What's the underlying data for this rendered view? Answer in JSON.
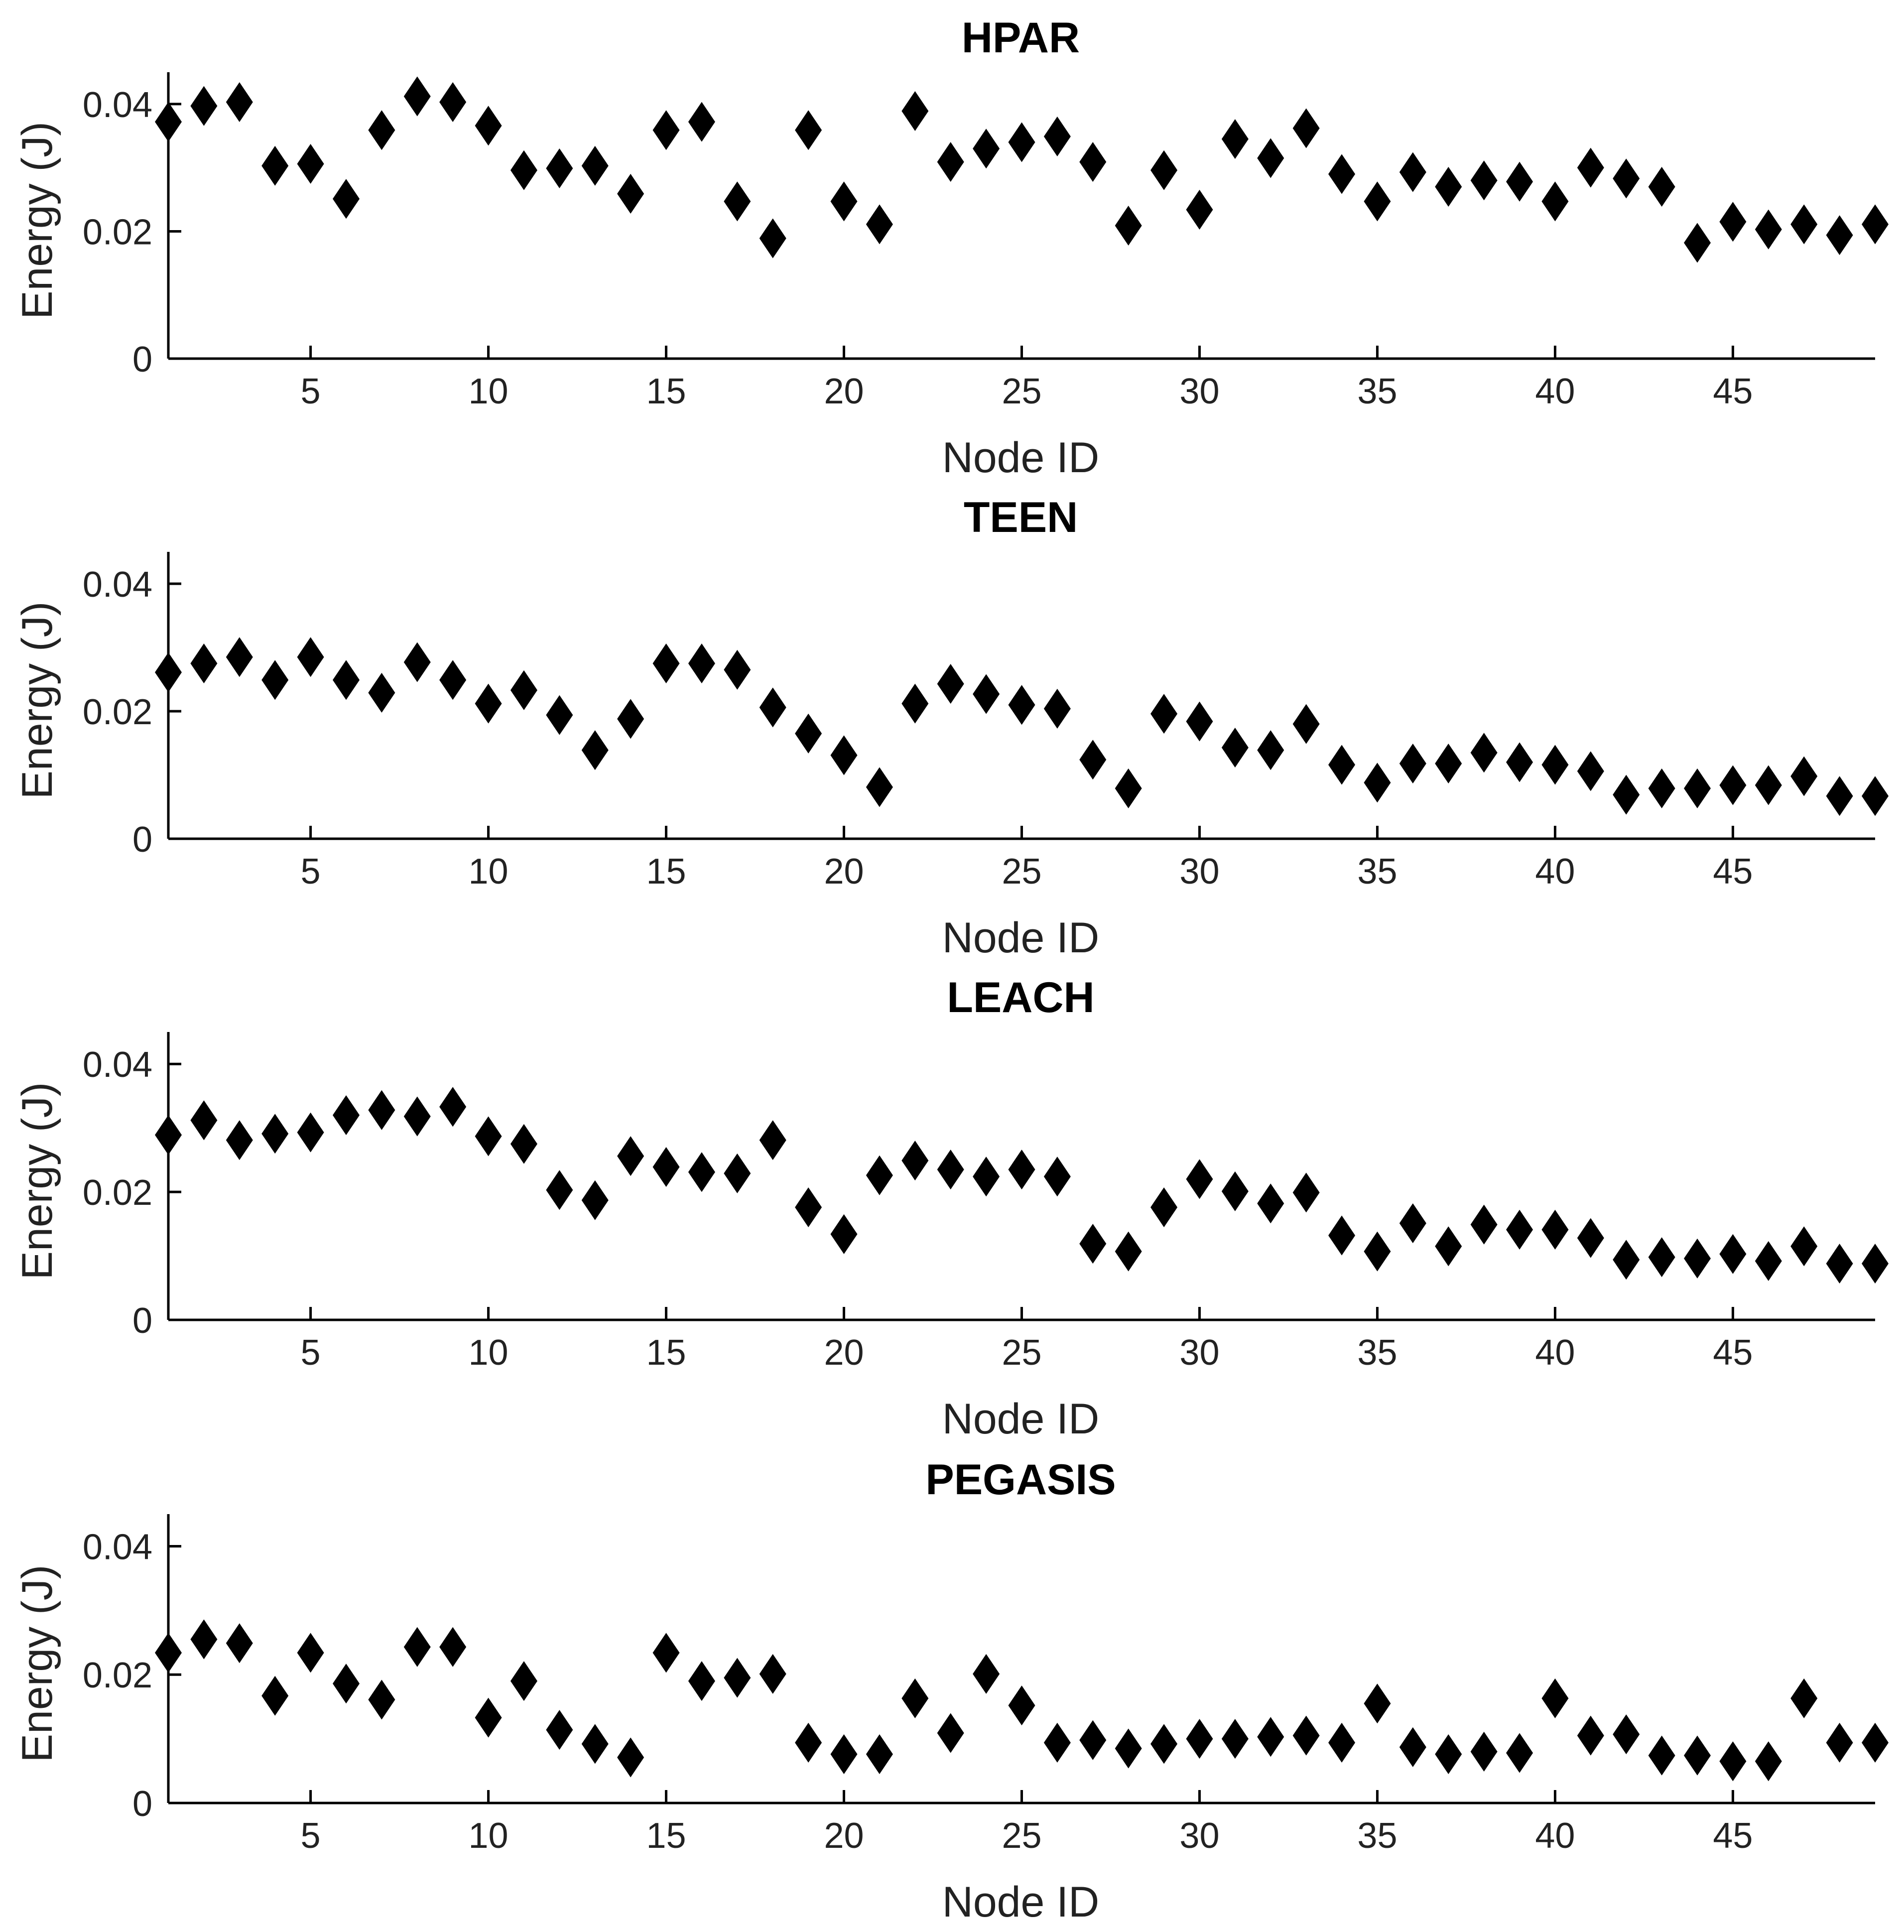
{
  "chart_data": [
    {
      "type": "scatter",
      "title": "HPAR",
      "xlabel": "Node ID",
      "ylabel": "Energy (J)",
      "xlim": [
        1,
        49
      ],
      "ylim": [
        0,
        0.045
      ],
      "xticks": [
        5,
        10,
        15,
        20,
        25,
        30,
        35,
        40,
        45
      ],
      "yticks": [
        0,
        0.02,
        0.04
      ],
      "ytick_labels": [
        "0",
        "0.02",
        "0.04"
      ],
      "marker": "diamond",
      "color": "#000000",
      "x": [
        1,
        2,
        3,
        4,
        5,
        6,
        7,
        8,
        9,
        10,
        11,
        12,
        13,
        14,
        15,
        16,
        17,
        18,
        19,
        20,
        21,
        22,
        23,
        24,
        25,
        26,
        27,
        28,
        29,
        30,
        31,
        32,
        33,
        34,
        35,
        36,
        37,
        38,
        39,
        40,
        41,
        42,
        43,
        44,
        45,
        46,
        47,
        48,
        49
      ],
      "y": [
        0.0372,
        0.0397,
        0.0403,
        0.0303,
        0.0306,
        0.0251,
        0.0359,
        0.0412,
        0.0403,
        0.0366,
        0.0296,
        0.0299,
        0.0303,
        0.0259,
        0.0359,
        0.0372,
        0.0247,
        0.0189,
        0.0359,
        0.0247,
        0.0211,
        0.0389,
        0.0309,
        0.033,
        0.034,
        0.0349,
        0.0309,
        0.0209,
        0.0296,
        0.0234,
        0.0345,
        0.0315,
        0.0362,
        0.029,
        0.0247,
        0.0293,
        0.027,
        0.028,
        0.0278,
        0.0247,
        0.03,
        0.0283,
        0.027,
        0.0182,
        0.0215,
        0.0203,
        0.0211,
        0.0194,
        0.0211
      ]
    },
    {
      "type": "scatter",
      "title": "TEEN",
      "xlabel": "Node ID",
      "ylabel": "Energy (J)",
      "xlim": [
        1,
        49
      ],
      "ylim": [
        0,
        0.045
      ],
      "xticks": [
        5,
        10,
        15,
        20,
        25,
        30,
        35,
        40,
        45
      ],
      "yticks": [
        0,
        0.02,
        0.04
      ],
      "ytick_labels": [
        "0",
        "0.02",
        "0.04"
      ],
      "marker": "diamond",
      "color": "#000000",
      "x": [
        1,
        2,
        3,
        4,
        5,
        6,
        7,
        8,
        9,
        10,
        11,
        12,
        13,
        14,
        15,
        16,
        17,
        18,
        19,
        20,
        21,
        22,
        23,
        24,
        25,
        26,
        27,
        28,
        29,
        30,
        31,
        32,
        33,
        34,
        35,
        36,
        37,
        38,
        39,
        40,
        41,
        42,
        43,
        44,
        45,
        46,
        47,
        48,
        49
      ],
      "y": [
        0.0261,
        0.0275,
        0.0285,
        0.0249,
        0.0285,
        0.0249,
        0.0229,
        0.0277,
        0.0249,
        0.0212,
        0.0233,
        0.0194,
        0.0139,
        0.0188,
        0.0275,
        0.0275,
        0.0265,
        0.0206,
        0.0165,
        0.0131,
        0.0081,
        0.0212,
        0.0243,
        0.0227,
        0.021,
        0.0204,
        0.0124,
        0.0079,
        0.0196,
        0.0184,
        0.0143,
        0.0139,
        0.018,
        0.0116,
        0.0088,
        0.0118,
        0.0118,
        0.0135,
        0.012,
        0.0116,
        0.0106,
        0.0069,
        0.0079,
        0.0079,
        0.0084,
        0.0084,
        0.0098,
        0.0067,
        0.0067
      ]
    },
    {
      "type": "scatter",
      "title": "LEACH",
      "xlabel": "Node ID",
      "ylabel": "Energy (J)",
      "xlim": [
        1,
        49
      ],
      "ylim": [
        0,
        0.045
      ],
      "xticks": [
        5,
        10,
        15,
        20,
        25,
        30,
        35,
        40,
        45
      ],
      "yticks": [
        0,
        0.02,
        0.04
      ],
      "ytick_labels": [
        "0",
        "0.02",
        "0.04"
      ],
      "marker": "diamond",
      "color": "#000000",
      "x": [
        1,
        2,
        3,
        4,
        5,
        6,
        7,
        8,
        9,
        10,
        11,
        12,
        13,
        14,
        15,
        16,
        17,
        18,
        19,
        20,
        21,
        22,
        23,
        24,
        25,
        26,
        27,
        28,
        29,
        30,
        31,
        32,
        33,
        34,
        35,
        36,
        37,
        38,
        39,
        40,
        41,
        42,
        43,
        44,
        45,
        46,
        47,
        48,
        49
      ],
      "y": [
        0.0289,
        0.0312,
        0.0281,
        0.0291,
        0.0293,
        0.032,
        0.0328,
        0.0318,
        0.0333,
        0.0287,
        0.0275,
        0.0203,
        0.0187,
        0.0256,
        0.0239,
        0.0231,
        0.0229,
        0.0281,
        0.0176,
        0.0134,
        0.0226,
        0.0249,
        0.0235,
        0.0224,
        0.0235,
        0.0224,
        0.0119,
        0.0107,
        0.0176,
        0.022,
        0.0201,
        0.0182,
        0.0199,
        0.0132,
        0.0107,
        0.0151,
        0.0115,
        0.0149,
        0.0141,
        0.0141,
        0.0128,
        0.0094,
        0.0098,
        0.0096,
        0.0103,
        0.0092,
        0.0115,
        0.0088,
        0.0088
      ]
    },
    {
      "type": "scatter",
      "title": "PEGASIS",
      "xlabel": "Node ID",
      "ylabel": "Energy (J)",
      "xlim": [
        1,
        49
      ],
      "ylim": [
        0,
        0.045
      ],
      "xticks": [
        5,
        10,
        15,
        20,
        25,
        30,
        35,
        40,
        45
      ],
      "yticks": [
        0,
        0.02,
        0.04
      ],
      "ytick_labels": [
        "0",
        "0.02",
        "0.04"
      ],
      "marker": "diamond",
      "color": "#000000",
      "x": [
        1,
        2,
        3,
        4,
        5,
        6,
        7,
        8,
        9,
        10,
        11,
        12,
        13,
        14,
        15,
        16,
        17,
        18,
        19,
        20,
        21,
        22,
        23,
        24,
        25,
        26,
        27,
        28,
        29,
        30,
        31,
        32,
        33,
        34,
        35,
        36,
        37,
        38,
        39,
        40,
        41,
        42,
        43,
        44,
        45,
        46,
        47,
        48,
        49
      ],
      "y": [
        0.0234,
        0.0255,
        0.0249,
        0.0167,
        0.0234,
        0.0186,
        0.0161,
        0.0243,
        0.0243,
        0.0133,
        0.019,
        0.0114,
        0.0092,
        0.0071,
        0.0234,
        0.019,
        0.0195,
        0.0201,
        0.0094,
        0.0076,
        0.0076,
        0.0163,
        0.0109,
        0.0201,
        0.0152,
        0.0094,
        0.0098,
        0.0085,
        0.0092,
        0.01,
        0.01,
        0.0103,
        0.0105,
        0.0094,
        0.0155,
        0.0087,
        0.0076,
        0.008,
        0.0078,
        0.0163,
        0.0105,
        0.0107,
        0.0074,
        0.0074,
        0.0065,
        0.0065,
        0.0163,
        0.0094,
        0.0094
      ]
    }
  ]
}
